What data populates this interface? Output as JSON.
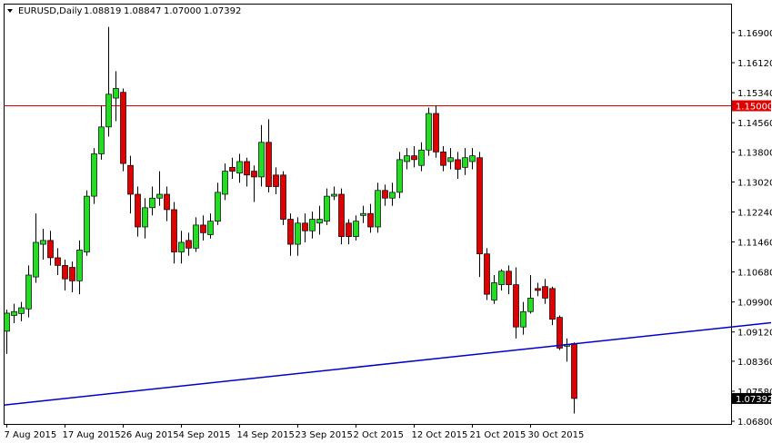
{
  "chart_data": {
    "type": "candlestick",
    "symbol": "EURUSD,Daily",
    "quote": [
      "1.08819",
      "1.08847",
      "1.07000",
      "1.07392"
    ],
    "categories": [
      "7 Aug 2015",
      null,
      null,
      null,
      null,
      null,
      null,
      null,
      "17 Aug 2015",
      null,
      null,
      null,
      null,
      null,
      null,
      null,
      "26 Aug 2015",
      null,
      null,
      null,
      null,
      null,
      null,
      null,
      "4 Sep 2015",
      null,
      null,
      null,
      null,
      null,
      null,
      null,
      "14 Sep 2015",
      null,
      null,
      null,
      null,
      null,
      null,
      null,
      "23 Sep 2015",
      null,
      null,
      null,
      null,
      null,
      null,
      null,
      "2 Oct 2015",
      null,
      null,
      null,
      null,
      null,
      null,
      null,
      "12 Oct 2015",
      null,
      null,
      null,
      null,
      null,
      null,
      null,
      "21 Oct 2015",
      null,
      null,
      null,
      null,
      null,
      null,
      null,
      "30 Oct 2015",
      null,
      null,
      null,
      null,
      null,
      null
    ],
    "open": [
      1.0914,
      1.0955,
      1.096,
      1.0972,
      1.1055,
      1.114,
      1.115,
      1.1105,
      1.1085,
      1.108,
      1.1045,
      1.112,
      1.1265,
      1.1375,
      1.1445,
      1.152,
      1.1535,
      1.1345,
      1.127,
      1.1185,
      1.1235,
      1.126,
      1.127,
      1.123,
      1.112,
      1.115,
      1.113,
      1.119,
      1.1165,
      1.12,
      1.127,
      1.134,
      1.1325,
      1.1355,
      1.133,
      1.1315,
      1.1405,
      1.132,
      1.132,
      1.1205,
      1.114,
      1.1195,
      1.1175,
      1.1195,
      1.12,
      1.1265,
      1.127,
      1.1195,
      1.116,
      1.1215,
      1.122,
      1.1185,
      1.128,
      1.126,
      1.1275,
      1.1355,
      1.137,
      1.1345,
      1.1385,
      1.148,
      1.138,
      1.1355,
      1.136,
      1.134,
      1.1355,
      1.1365,
      1.1115,
      1.0995,
      1.1035,
      1.107,
      1.1035,
      1.0925,
      1.0965,
      1.1025,
      1.103,
      1.1025,
      1.095,
      1.0875,
      1.08819
    ],
    "high": [
      1.097,
      1.0985,
      1.099,
      1.1085,
      1.122,
      1.118,
      1.1175,
      1.113,
      1.11,
      1.1095,
      1.115,
      1.128,
      1.139,
      1.15,
      1.1705,
      1.159,
      1.1545,
      1.137,
      1.129,
      1.126,
      1.129,
      1.133,
      1.129,
      1.125,
      1.1175,
      1.117,
      1.121,
      1.1215,
      1.122,
      1.13,
      1.135,
      1.1365,
      1.1375,
      1.1365,
      1.1345,
      1.145,
      1.1465,
      1.134,
      1.133,
      1.122,
      1.121,
      1.122,
      1.1225,
      1.124,
      1.1285,
      1.129,
      1.1285,
      1.1205,
      1.1215,
      1.124,
      1.1245,
      1.13,
      1.1295,
      1.13,
      1.138,
      1.139,
      1.1395,
      1.1405,
      1.1495,
      1.15,
      1.1395,
      1.139,
      1.138,
      1.139,
      1.139,
      1.138,
      1.113,
      1.106,
      1.1075,
      1.1085,
      1.108,
      1.099,
      1.106,
      1.104,
      1.105,
      1.103,
      1.0955,
      1.0895,
      1.08847
    ],
    "low": [
      1.0855,
      1.0935,
      1.094,
      1.095,
      1.104,
      1.11,
      1.1085,
      1.106,
      1.102,
      1.1015,
      1.101,
      1.111,
      1.1245,
      1.136,
      1.142,
      1.146,
      1.133,
      1.122,
      1.116,
      1.1155,
      1.1215,
      1.124,
      1.12,
      1.109,
      1.109,
      1.111,
      1.112,
      1.115,
      1.1155,
      1.119,
      1.1255,
      1.131,
      1.13,
      1.129,
      1.125,
      1.129,
      1.1275,
      1.127,
      1.119,
      1.111,
      1.111,
      1.1145,
      1.1155,
      1.1165,
      1.119,
      1.1255,
      1.114,
      1.114,
      1.115,
      1.1195,
      1.117,
      1.117,
      1.124,
      1.124,
      1.126,
      1.1335,
      1.134,
      1.133,
      1.137,
      1.1365,
      1.133,
      1.1335,
      1.131,
      1.132,
      1.1335,
      1.1055,
      1.0995,
      1.0985,
      1.102,
      1.101,
      1.0895,
      1.0905,
      1.096,
      1.1005,
      1.0985,
      1.093,
      1.0865,
      1.0835,
      1.07
    ],
    "close": [
      1.0961,
      1.0965,
      1.0975,
      1.106,
      1.1145,
      1.115,
      1.1105,
      1.1085,
      1.105,
      1.1045,
      1.1125,
      1.1265,
      1.1375,
      1.1445,
      1.153,
      1.1545,
      1.135,
      1.127,
      1.1185,
      1.1235,
      1.126,
      1.127,
      1.123,
      1.112,
      1.1145,
      1.113,
      1.119,
      1.117,
      1.12,
      1.1275,
      1.133,
      1.133,
      1.1355,
      1.132,
      1.1315,
      1.1405,
      1.129,
      1.129,
      1.1205,
      1.114,
      1.1195,
      1.1175,
      1.1205,
      1.1205,
      1.1265,
      1.127,
      1.116,
      1.116,
      1.12,
      1.122,
      1.1185,
      1.128,
      1.126,
      1.1275,
      1.136,
      1.137,
      1.136,
      1.1385,
      1.148,
      1.138,
      1.1345,
      1.1365,
      1.1335,
      1.1365,
      1.137,
      1.1115,
      1.101,
      1.104,
      1.107,
      1.1035,
      1.0925,
      1.0965,
      1.1,
      1.102,
      1.1,
      1.0945,
      1.087,
      1.088,
      1.07392
    ],
    "up_color": "#22dd22",
    "down_color": "#e00000",
    "ylim": [
      1.0673,
      1.17655
    ],
    "yticks": [
      {
        "value": 1.169,
        "label": "1.16900"
      },
      {
        "value": 1.1612,
        "label": "1.16120"
      },
      {
        "value": 1.1534,
        "label": "1.15340"
      },
      {
        "value": 1.1456,
        "label": "1.14560"
      },
      {
        "value": 1.138,
        "label": "1.13800"
      },
      {
        "value": 1.1302,
        "label": "1.13020"
      },
      {
        "value": 1.1224,
        "label": "1.12240"
      },
      {
        "value": 1.1146,
        "label": "1.11460"
      },
      {
        "value": 1.1068,
        "label": "1.10680"
      },
      {
        "value": 1.099,
        "label": "1.09900"
      },
      {
        "value": 1.0912,
        "label": "1.09120"
      },
      {
        "value": 1.0836,
        "label": "1.08360"
      },
      {
        "value": 1.0758,
        "label": "1.07580"
      },
      {
        "value": 1.068,
        "label": "1.06800"
      }
    ],
    "level_line": {
      "value": 1.15,
      "label": "1.15000",
      "color": "#e00000"
    },
    "price_label": 1.07392,
    "trend_line": {
      "values": [
        1.0722,
        1.0925
      ],
      "color": "#0000cc"
    }
  }
}
